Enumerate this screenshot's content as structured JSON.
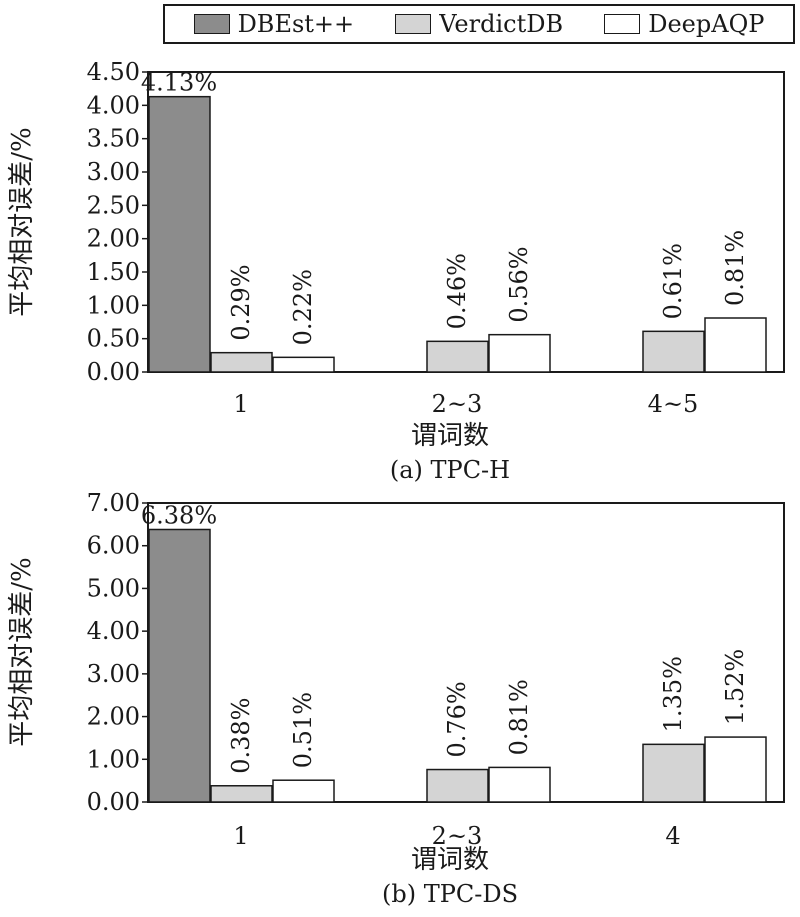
{
  "legend": {
    "entries": [
      {
        "name": "DBEst++",
        "color": "#8c8c8c"
      },
      {
        "name": "VerdictDB",
        "color": "#d4d4d4"
      },
      {
        "name": "DeepAQP",
        "color": "#ffffff"
      }
    ]
  },
  "chart_data": [
    {
      "type": "bar",
      "title": "(a) TPC-H",
      "xlabel": "谓词数",
      "ylabel": "平均相对误差/%",
      "ylim": [
        0,
        4.5
      ],
      "yticks": [
        "0.00",
        "0.50",
        "1.00",
        "1.50",
        "2.00",
        "2.50",
        "3.00",
        "3.50",
        "4.00",
        "4.50"
      ],
      "categories": [
        "1",
        "2~3",
        "4~5"
      ],
      "series": [
        {
          "name": "DBEst++",
          "values": [
            4.13,
            null,
            null
          ],
          "labels": [
            "4.13%",
            "",
            ""
          ]
        },
        {
          "name": "VerdictDB",
          "values": [
            0.29,
            0.46,
            0.61
          ],
          "labels": [
            "0.29%",
            "0.46%",
            "0.61%"
          ]
        },
        {
          "name": "DeepAQP",
          "values": [
            0.22,
            0.56,
            0.81
          ],
          "labels": [
            "0.22%",
            "0.56%",
            "0.81%"
          ]
        }
      ],
      "grid": false
    },
    {
      "type": "bar",
      "title": "(b) TPC-DS",
      "xlabel": "谓词数",
      "ylabel": "平均相对误差/%",
      "ylim": [
        0,
        7
      ],
      "yticks": [
        "0.00",
        "1.00",
        "2.00",
        "3.00",
        "4.00",
        "5.00",
        "6.00",
        "7.00"
      ],
      "categories": [
        "1",
        "2~3",
        "4"
      ],
      "series": [
        {
          "name": "DBEst++",
          "values": [
            6.38,
            null,
            null
          ],
          "labels": [
            "6.38%",
            "",
            ""
          ]
        },
        {
          "name": "VerdictDB",
          "values": [
            0.38,
            0.76,
            1.35
          ],
          "labels": [
            "0.38%",
            "0.76%",
            "1.35%"
          ]
        },
        {
          "name": "DeepAQP",
          "values": [
            0.51,
            0.81,
            1.52
          ],
          "labels": [
            "0.51%",
            "0.81%",
            "1.52%"
          ]
        }
      ],
      "grid": false
    }
  ]
}
